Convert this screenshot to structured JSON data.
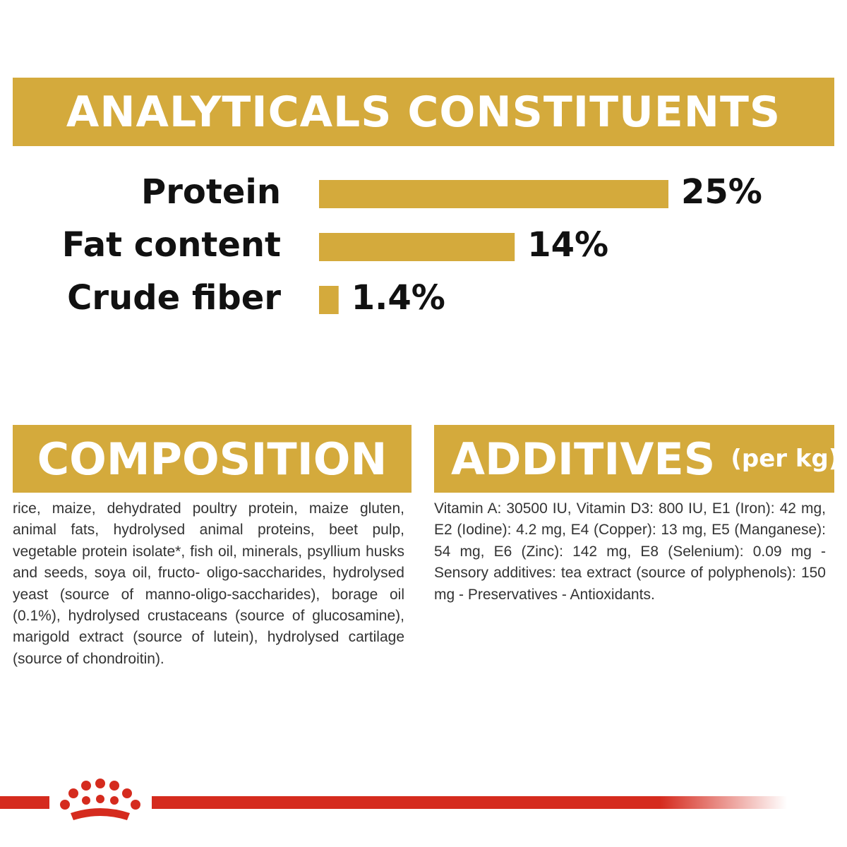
{
  "chart_data": {
    "type": "hbar",
    "title": "ANALYTICALS CONSTITUENTS",
    "categories": [
      "Protein",
      "Fat content",
      "Crude fiber"
    ],
    "values": [
      25,
      14,
      1.4
    ],
    "value_labels": [
      "25%",
      "14%",
      "1.4%"
    ],
    "color": "#d4aa3c"
  },
  "composition": {
    "title": "COMPOSITION",
    "text": "rice, maize, dehydrated poultry protein, maize gluten, animal fats, hydrolysed animal proteins, beet pulp, vegetable protein isolate*, fish oil, minerals, psyllium husks and seeds, soya oil, fructo- oligo-saccharides, hydrolysed yeast (source of manno-oligo-saccharides), borage oil (0.1%), hydrolysed crustaceans (source of glucosamine), marigold extract (source of lutein), hydrolysed cartilage (source of chondroitin)."
  },
  "additives": {
    "title": "ADDITIVES",
    "unit": "(per kg)",
    "text": "Vitamin A: 30500 IU, Vitamin D3: 800 IU, E1 (Iron): 42 mg, E2 (Iodine): 4.2 mg, E4 (Copper): 13 mg, E5 (Manganese): 54 mg, E6 (Zinc): 142 mg, E8 (Selenium): 0.09 mg - Sensory additives: tea extract (source of polyphenols): 150 mg - Preservatives - Antioxidants."
  }
}
